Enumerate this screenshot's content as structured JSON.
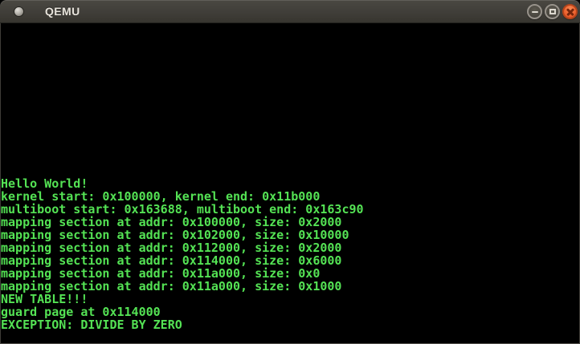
{
  "window": {
    "title": "QEMU"
  },
  "titlebar": {
    "icon": "qemu-app-icon",
    "controls": [
      {
        "name": "minimize",
        "icon": "minimize-icon"
      },
      {
        "name": "maximize",
        "icon": "maximize-icon"
      },
      {
        "name": "close",
        "icon": "close-icon"
      }
    ]
  },
  "colors": {
    "titlebar_background": "#403e39",
    "titlebar_text": "#e7e3db",
    "close_button": "#ef6a35",
    "console_background": "#000000",
    "console_text": "#54e254"
  },
  "console": {
    "lines": [
      "Hello World!",
      "kernel start: 0x100000, kernel end: 0x11b000",
      "multiboot start: 0x163688, multiboot end: 0x163c90",
      "mapping section at addr: 0x100000, size: 0x2000",
      "mapping section at addr: 0x102000, size: 0x10000",
      "mapping section at addr: 0x112000, size: 0x2000",
      "mapping section at addr: 0x114000, size: 0x6000",
      "mapping section at addr: 0x11a000, size: 0x0",
      "mapping section at addr: 0x11a000, size: 0x1000",
      "NEW TABLE!!!",
      "guard page at 0x114000",
      "EXCEPTION: DIVIDE BY ZERO"
    ]
  }
}
